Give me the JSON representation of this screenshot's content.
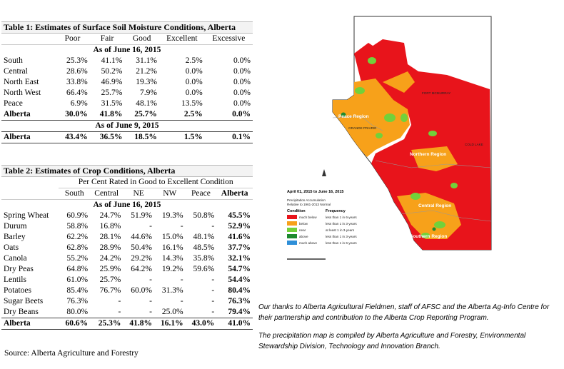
{
  "table1": {
    "title": "Table 1: Estimates of Surface Soil Moisture Conditions, Alberta",
    "columns": [
      "Poor",
      "Fair",
      "Good",
      "Excellent",
      "Excessive"
    ],
    "asof_current": "As of June 16, 2015",
    "rows": [
      {
        "region": "South",
        "values": [
          "25.3%",
          "41.1%",
          "31.1%",
          "2.5%",
          "0.0%"
        ]
      },
      {
        "region": "Central",
        "values": [
          "28.6%",
          "50.2%",
          "21.2%",
          "0.0%",
          "0.0%"
        ]
      },
      {
        "region": "North East",
        "values": [
          "33.8%",
          "46.9%",
          "19.3%",
          "0.0%",
          "0.0%"
        ]
      },
      {
        "region": "North West",
        "values": [
          "66.4%",
          "25.7%",
          "7.9%",
          "0.0%",
          "0.0%"
        ]
      },
      {
        "region": "Peace",
        "values": [
          "6.9%",
          "31.5%",
          "48.1%",
          "13.5%",
          "0.0%"
        ]
      }
    ],
    "total_current": {
      "region": "Alberta",
      "values": [
        "30.0%",
        "41.8%",
        "25.7%",
        "2.5%",
        "0.0%"
      ]
    },
    "asof_previous": "As of June 9, 2015",
    "total_previous": {
      "region": "Alberta",
      "values": [
        "43.4%",
        "36.5%",
        "18.5%",
        "1.5%",
        "0.1%"
      ]
    }
  },
  "table2": {
    "title": "Table 2: Estimates of Crop Conditions, Alberta",
    "subtitle": "Per Cent Rated in Good to Excellent Condition",
    "columns": [
      "South",
      "Central",
      "NE",
      "NW",
      "Peace",
      "Alberta"
    ],
    "asof": "As of June 16, 2015",
    "rows": [
      {
        "crop": "Spring Wheat",
        "values": [
          "60.9%",
          "24.7%",
          "51.9%",
          "19.3%",
          "50.8%",
          "45.5%"
        ]
      },
      {
        "crop": "Durum",
        "values": [
          "58.8%",
          "16.8%",
          "-",
          "-",
          "-",
          "52.9%"
        ]
      },
      {
        "crop": "Barley",
        "values": [
          "62.2%",
          "28.1%",
          "44.6%",
          "15.0%",
          "48.1%",
          "41.6%"
        ]
      },
      {
        "crop": "Oats",
        "values": [
          "62.8%",
          "28.9%",
          "50.4%",
          "16.1%",
          "48.5%",
          "37.7%"
        ]
      },
      {
        "crop": "Canola",
        "values": [
          "55.2%",
          "24.2%",
          "29.2%",
          "14.3%",
          "35.8%",
          "32.1%"
        ]
      },
      {
        "crop": "Dry Peas",
        "values": [
          "64.8%",
          "25.9%",
          "64.2%",
          "19.2%",
          "59.6%",
          "54.7%"
        ]
      },
      {
        "crop": "Lentils",
        "values": [
          "61.0%",
          "25.7%",
          "-",
          "-",
          "-",
          "54.4%"
        ]
      },
      {
        "crop": "Potatoes",
        "values": [
          "85.4%",
          "76.7%",
          "60.0%",
          "31.3%",
          "-",
          "80.4%"
        ]
      },
      {
        "crop": "Sugar Beets",
        "values": [
          "76.3%",
          "-",
          "-",
          "-",
          "-",
          "76.3%"
        ]
      },
      {
        "crop": "Dry Beans",
        "values": [
          "80.0%",
          "-",
          "-",
          "25.0%",
          "-",
          "79.4%"
        ]
      }
    ],
    "total": {
      "crop": "Alberta",
      "values": [
        "60.6%",
        "25.3%",
        "41.8%",
        "16.1%",
        "43.0%",
        "41.0%"
      ]
    }
  },
  "source": "Source: Alberta Agriculture and Forestry",
  "map": {
    "legend_title": "April 01, 2015 to June 16, 2015",
    "legend_sub1": "Precipitation Accumulation",
    "legend_sub2": "Relative to 1961-2013 Normal",
    "col_condition": "Condition",
    "col_frequency": "Frequency",
    "legend_items": [
      {
        "color": "#e8141b",
        "condition": "much below",
        "frequency": "less than 1 in 6-years"
      },
      {
        "color": "#f7a11a",
        "condition": "below",
        "frequency": "less than 1 in 3-years"
      },
      {
        "color": "#72d13a",
        "condition": "near",
        "frequency": "at least 1 in 3-years"
      },
      {
        "color": "#1e8a2e",
        "condition": "above",
        "frequency": "less than 1 in 3-years"
      },
      {
        "color": "#2f8fd8",
        "condition": "much above",
        "frequency": "less than 1 in 6-years"
      }
    ],
    "regions": {
      "peace": "Peace Region",
      "northern": "Northern Region",
      "central": "Central Region",
      "southern": "Southern Region"
    },
    "places": {
      "fort_mcmurray": "FORT MCMURRAY",
      "grande_prairie": "GRANDE PRAIRIE",
      "cold_lake": "COLD LAKE"
    }
  },
  "credits": {
    "thanks": "Our thanks to Alberta Agricultural Fieldmen, staff of AFSC and the Alberta Ag-Info Centre for their partnership and contribution to the Alberta Crop Reporting Program.",
    "map_note": "The precipitation map is compiled by Alberta Agriculture and Forestry, Environmental Stewardship Division, Technology and Innovation Branch."
  }
}
